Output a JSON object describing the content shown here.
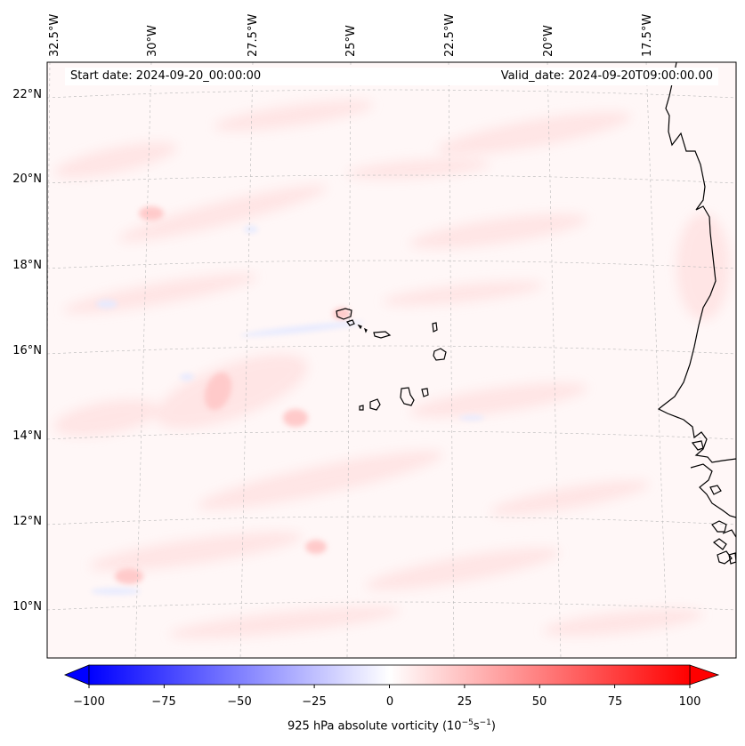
{
  "header": {
    "start_date": "Start date: 2024-09-20_00:00:00",
    "valid_date": "Valid_date: 2024-09-20T09:00:00.00"
  },
  "longitude_labels": [
    "32.5°W",
    "30°W",
    "27.5°W",
    "25°W",
    "22.5°W",
    "20°W",
    "17.5°W"
  ],
  "latitude_labels": [
    "22°N",
    "20°N",
    "18°N",
    "16°N",
    "14°N",
    "12°N",
    "10°N"
  ],
  "colorbar": {
    "ticks": [
      "−100",
      "−75",
      "−50",
      "−25",
      "0",
      "25",
      "50",
      "75",
      "100"
    ],
    "label_prefix": "925 hPa absolute vorticity (10",
    "label_exp1": "−5",
    "label_mid": "s",
    "label_exp2": "−1",
    "label_suffix": ")",
    "min": -100,
    "max": 100,
    "low_color": "#0000ff",
    "mid_color": "#ffffff",
    "high_color": "#ff0000"
  },
  "map": {
    "background_color": "#fff7f7",
    "coastline_color": "#000000",
    "gridline_color": "#b0b0b0"
  }
}
